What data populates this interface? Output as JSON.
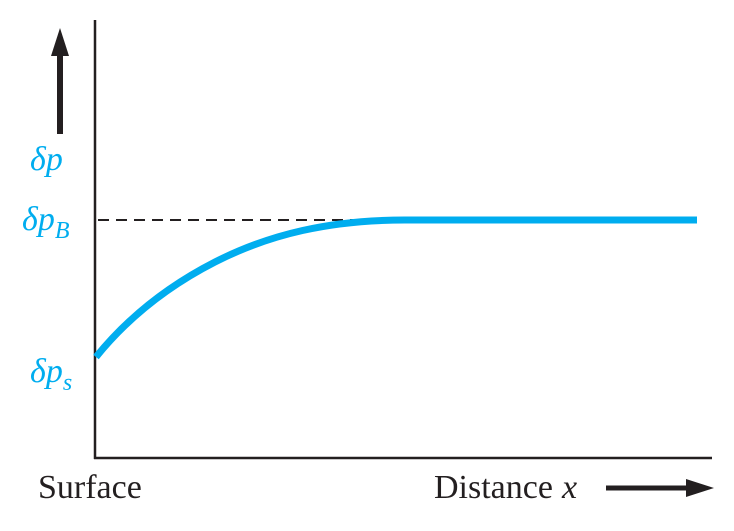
{
  "colors": {
    "curve": "#00adef",
    "axis": "#231f20",
    "reference_line": "#231f20",
    "background": "#ffffff"
  },
  "y_axis": {
    "label_symbol": "δ",
    "label_var": "p",
    "arrow": "up-arrow-icon"
  },
  "levels": {
    "bulk": {
      "symbol": "δ",
      "var": "p",
      "sub": "B"
    },
    "surface": {
      "symbol": "δ",
      "var": "p",
      "sub": "s"
    }
  },
  "x_axis": {
    "left_label": "Surface",
    "right_label": "Distance",
    "right_var": "x",
    "arrow": "right-arrow-icon"
  },
  "curve": {
    "shape": "rises from surface value and saturates at bulk value",
    "reference_line_style": "dashed"
  }
}
